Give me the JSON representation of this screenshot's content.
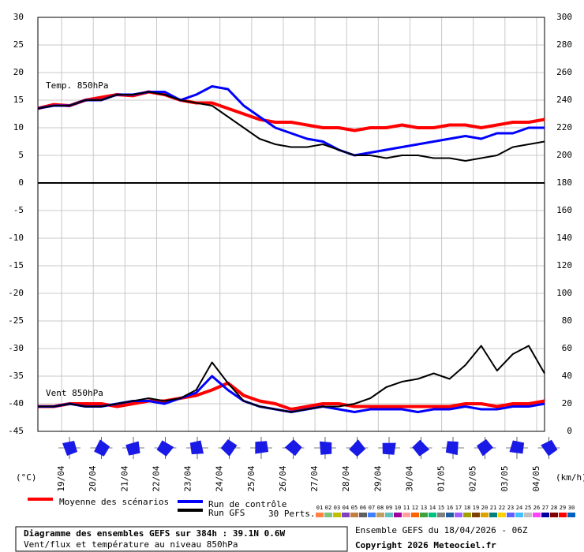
{
  "chart_data": {
    "type": "line",
    "annotations": [
      "Temp. 850hPa",
      "Vent 850hPa"
    ],
    "ylabel": "(°C)",
    "y2label": "(km/h)",
    "x": [
      0,
      12,
      24,
      36,
      48,
      60,
      72,
      84,
      96,
      108,
      120,
      132,
      144,
      156,
      168,
      180,
      192,
      204,
      216,
      228,
      240,
      252,
      264,
      276,
      288,
      300,
      312,
      324,
      336,
      348,
      360,
      372,
      384
    ],
    "xlim": [
      0,
      384
    ],
    "xticks": [
      {
        "value": 18,
        "label": "19/04"
      },
      {
        "value": 42,
        "label": "20/04"
      },
      {
        "value": 66,
        "label": "21/04"
      },
      {
        "value": 90,
        "label": "22/04"
      },
      {
        "value": 114,
        "label": "23/04"
      },
      {
        "value": 138,
        "label": "24/04"
      },
      {
        "value": 162,
        "label": "25/04"
      },
      {
        "value": 186,
        "label": "26/04"
      },
      {
        "value": 210,
        "label": "27/04"
      },
      {
        "value": 234,
        "label": "28/04"
      },
      {
        "value": 258,
        "label": "29/04"
      },
      {
        "value": 282,
        "label": "30/04"
      },
      {
        "value": 306,
        "label": "01/05"
      },
      {
        "value": 330,
        "label": "02/05"
      },
      {
        "value": 354,
        "label": "03/05"
      },
      {
        "value": 378,
        "label": "04/05"
      }
    ],
    "ylim": [
      -45,
      30
    ],
    "yticks": [
      30,
      25,
      20,
      15,
      10,
      5,
      0,
      -5,
      -10,
      -15,
      -20,
      -25,
      -30,
      -35,
      -40,
      -45
    ],
    "y2lim": [
      0,
      300
    ],
    "y2ticks": [
      300,
      280,
      260,
      240,
      220,
      200,
      180,
      160,
      140,
      120,
      100,
      80,
      60,
      40,
      20,
      0
    ],
    "grid": true,
    "series": [
      {
        "name": "Moyenne des scénarios",
        "color": "#ff0000",
        "values": [
          13.5,
          14.2,
          14,
          15,
          15.5,
          16,
          15.8,
          16.5,
          16,
          15,
          14.5,
          14.5,
          13.5,
          12.5,
          11.5,
          11,
          11,
          10.5,
          10,
          10,
          9.5,
          10,
          10,
          10.5,
          10,
          10,
          10.5,
          10.5,
          10,
          10.5,
          11,
          11,
          11.5
        ]
      },
      {
        "name": "Run de contrôle",
        "color": "#0000ff",
        "values": [
          13.5,
          14,
          14,
          15,
          15,
          16,
          16,
          16.5,
          16.5,
          15,
          16,
          17.5,
          17,
          14,
          12,
          10,
          9,
          8,
          7.5,
          6,
          5,
          5.5,
          6,
          6.5,
          7,
          7.5,
          8,
          8.5,
          8,
          9,
          9,
          10,
          10
        ]
      },
      {
        "name": "Run GFS",
        "color": "#000000",
        "values": [
          13.5,
          14,
          14,
          15,
          15,
          16,
          16,
          16.5,
          16,
          15,
          14.5,
          14,
          12,
          10,
          8,
          7,
          6.5,
          6.5,
          7,
          6,
          5,
          5,
          4.5,
          5,
          5,
          4.5,
          4.5,
          4,
          4.5,
          5,
          6.5,
          7,
          7.5
        ]
      },
      {
        "color": "#ff0000",
        "axis": "y2",
        "values": [
          18,
          18,
          20,
          20,
          20,
          18,
          20,
          22,
          22,
          24,
          26,
          30,
          35,
          26,
          22,
          20,
          16,
          18,
          20,
          20,
          18,
          18,
          18,
          18,
          18,
          18,
          18,
          20,
          20,
          18,
          20,
          20,
          22
        ]
      },
      {
        "color": "#0000ff",
        "axis": "y2",
        "values": [
          18,
          18,
          20,
          18,
          18,
          20,
          22,
          22,
          20,
          24,
          28,
          40,
          30,
          22,
          18,
          16,
          14,
          16,
          18,
          16,
          14,
          16,
          16,
          16,
          14,
          16,
          16,
          18,
          16,
          16,
          18,
          18,
          20
        ]
      },
      {
        "color": "#000000",
        "axis": "y2",
        "values": [
          18,
          18,
          20,
          18,
          18,
          20,
          22,
          24,
          22,
          24,
          30,
          50,
          35,
          22,
          18,
          16,
          14,
          16,
          18,
          18,
          20,
          24,
          32,
          36,
          38,
          42,
          38,
          48,
          62,
          44,
          56,
          62,
          42
        ]
      }
    ],
    "perturbations_label": "30 Perts.",
    "perturbations": [
      {
        "name": "01",
        "color": "#ff8040"
      },
      {
        "name": "02",
        "color": "#80c080"
      },
      {
        "name": "03",
        "color": "#c0c000"
      },
      {
        "name": "04",
        "color": "#8040c0"
      },
      {
        "name": "05",
        "color": "#c08040"
      },
      {
        "name": "06",
        "color": "#606060"
      },
      {
        "name": "07",
        "color": "#4080ff"
      },
      {
        "name": "08",
        "color": "#c0a060"
      },
      {
        "name": "09",
        "color": "#60c0c0"
      },
      {
        "name": "10",
        "color": "#a000a0"
      },
      {
        "name": "11",
        "color": "#ffa0a0"
      },
      {
        "name": "12",
        "color": "#ff6000"
      },
      {
        "name": "13",
        "color": "#40a040"
      },
      {
        "name": "14",
        "color": "#00c080"
      },
      {
        "name": "15",
        "color": "#808080"
      },
      {
        "name": "16",
        "color": "#2060a0"
      },
      {
        "name": "17",
        "color": "#a060ff"
      },
      {
        "name": "18",
        "color": "#a0a000"
      },
      {
        "name": "19",
        "color": "#804000"
      },
      {
        "name": "20",
        "color": "#e0a000"
      },
      {
        "name": "21",
        "color": "#008080"
      },
      {
        "name": "22",
        "color": "#ffd000"
      },
      {
        "name": "23",
        "color": "#6060ff"
      },
      {
        "name": "24",
        "color": "#40c0ff"
      },
      {
        "name": "25",
        "color": "#c0c0c0"
      },
      {
        "name": "26",
        "color": "#ff40ff"
      },
      {
        "name": "27",
        "color": "#0000a0"
      },
      {
        "name": "28",
        "color": "#800000"
      },
      {
        "name": "29",
        "color": "#ff0000"
      },
      {
        "name": "30",
        "color": "#0060c0"
      }
    ],
    "footer": {
      "title": "Diagramme des ensembles GEFS sur 384h : 39.1N 0.6W",
      "subtitle": "Vent/flux et température au niveau 850hPa",
      "run": "Ensemble GEFS du 18/04/2026 - 06Z",
      "copyright": "Copyright 2026 Meteociel.fr"
    }
  }
}
